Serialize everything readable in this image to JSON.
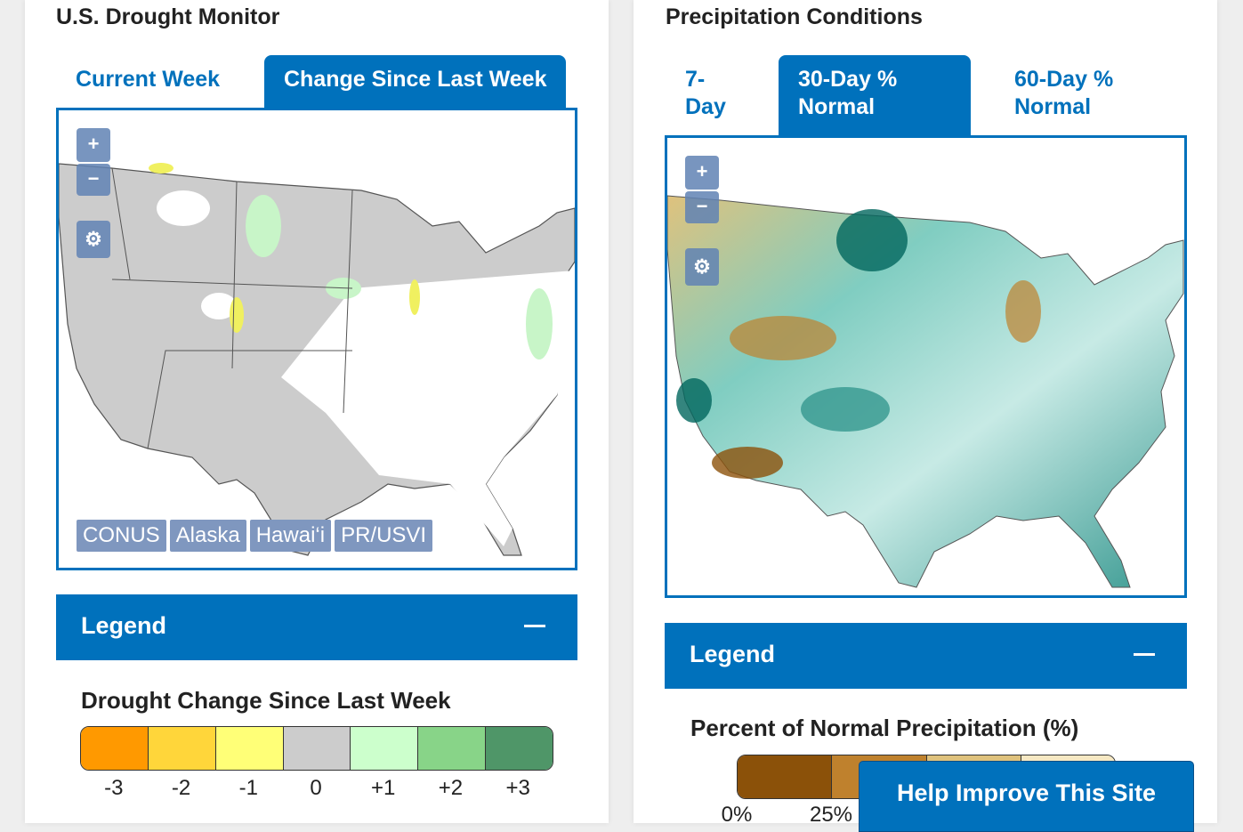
{
  "drought": {
    "title": "U.S. Drought Monitor",
    "tabs": [
      "Current Week",
      "Change Since Last Week"
    ],
    "active_tab": 1,
    "map_controls": {
      "zoom_in": "+",
      "zoom_out": "−"
    },
    "regions": [
      "CONUS",
      "Alaska",
      "Hawai‘i",
      "PR/USVI"
    ],
    "legend_label": "Legend",
    "legend_title": "Drought Change Since Last Week",
    "scale": [
      {
        "label": "-3",
        "color": "#ff9900"
      },
      {
        "label": "-2",
        "color": "#ffd63a"
      },
      {
        "label": "-1",
        "color": "#ffff77"
      },
      {
        "label": "0",
        "color": "#cccccc"
      },
      {
        "label": "+1",
        "color": "#ccffcc"
      },
      {
        "label": "+2",
        "color": "#88d488"
      },
      {
        "label": "+3",
        "color": "#4f9668"
      }
    ]
  },
  "precip": {
    "title": "Precipitation Conditions",
    "tabs": [
      "7-Day",
      "30-Day % Normal",
      "60-Day % Normal"
    ],
    "active_tab": 1,
    "map_controls": {
      "zoom_in": "+",
      "zoom_out": "−"
    },
    "legend_label": "Legend",
    "legend_title": "Percent of Normal Precipitation (%)",
    "scale": [
      {
        "color": "#8b5109"
      },
      {
        "color": "#bf812d"
      },
      {
        "color": "#dfc27d"
      },
      {
        "color": "#f6e8c3"
      }
    ],
    "ticks": [
      "0%",
      "25%"
    ]
  },
  "help_button": "Help Improve This Site"
}
